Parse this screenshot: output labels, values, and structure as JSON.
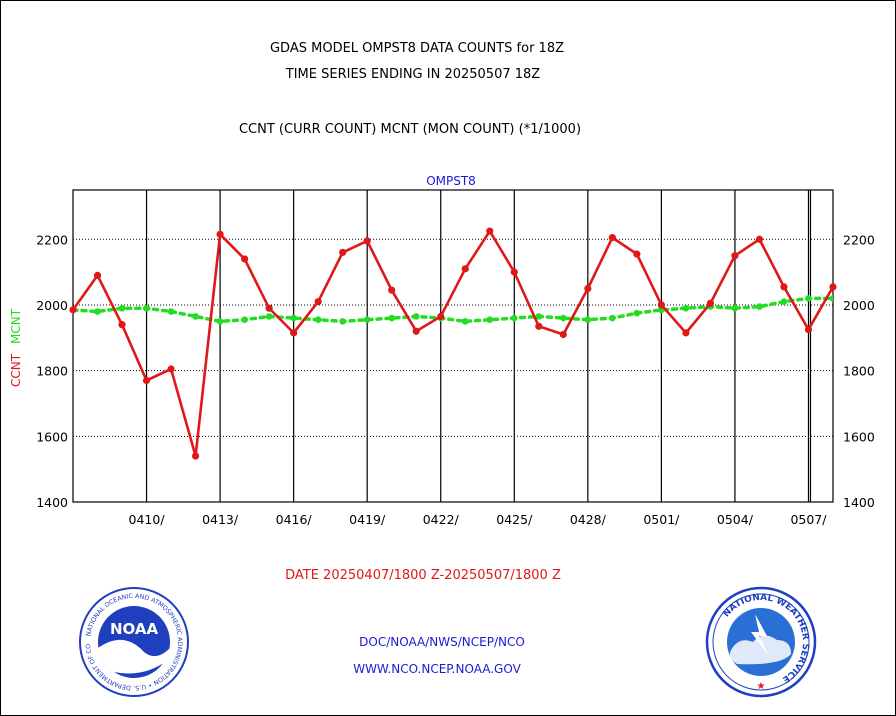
{
  "header": {
    "line1": "GDAS MODEL OMPST8 DATA COUNTS for 18Z",
    "line2": "TIME SERIES ENDING IN 20250507 18Z",
    "line3": "CCNT (CURR COUNT) MCNT (MON COUNT) (*1/1000)"
  },
  "chart_data": {
    "type": "line",
    "title": "OMPST8",
    "ylabel_curr": "CCNT",
    "ylabel_mon": "MCNT",
    "xlabel": "DATE 20250407/1800 Z-20250507/1800 Z",
    "ylim": [
      1400,
      2350
    ],
    "xlim": [
      "20250407",
      "20250508"
    ],
    "grid": true,
    "yticks": [
      1400,
      1600,
      1800,
      2000,
      2200
    ],
    "xtick_labels": [
      "0410/",
      "0413/",
      "0416/",
      "0419/",
      "0422/",
      "0425/",
      "0428/",
      "0501/",
      "0504/",
      "0507/"
    ],
    "series": [
      {
        "name": "CCNT",
        "color": "#e01818",
        "x": [
          "20250407",
          "20250408",
          "20250409",
          "20250410",
          "20250411",
          "20250412",
          "20250413",
          "20250414",
          "20250415",
          "20250416",
          "20250417",
          "20250418",
          "20250419",
          "20250420",
          "20250421",
          "20250422",
          "20250423",
          "20250424",
          "20250425",
          "20250426",
          "20250427",
          "20250428",
          "20250429",
          "20250430",
          "20250501",
          "20250502",
          "20250503",
          "20250504",
          "20250505",
          "20250506",
          "20250507",
          "20250508"
        ],
        "values": [
          1985,
          2090,
          1940,
          1770,
          1805,
          1540,
          2215,
          2140,
          1990,
          1915,
          2010,
          2160,
          2195,
          2045,
          1920,
          1965,
          2110,
          2225,
          2100,
          1935,
          1910,
          2050,
          2205,
          2155,
          2000,
          1915,
          2005,
          2150,
          2200,
          2055,
          1925,
          2055
        ]
      },
      {
        "name": "MCNT",
        "color": "#22dd22",
        "x": [
          "20250407",
          "20250408",
          "20250409",
          "20250410",
          "20250411",
          "20250412",
          "20250413",
          "20250414",
          "20250415",
          "20250416",
          "20250417",
          "20250418",
          "20250419",
          "20250420",
          "20250421",
          "20250422",
          "20250423",
          "20250424",
          "20250425",
          "20250426",
          "20250427",
          "20250428",
          "20250429",
          "20250430",
          "20250501",
          "20250502",
          "20250503",
          "20250504",
          "20250505",
          "20250506",
          "20250507",
          "20250508"
        ],
        "values": [
          1985,
          1980,
          1990,
          1990,
          1980,
          1965,
          1950,
          1955,
          1965,
          1960,
          1955,
          1950,
          1955,
          1960,
          1965,
          1960,
          1950,
          1955,
          1960,
          1965,
          1960,
          1955,
          1960,
          1975,
          1985,
          1990,
          1995,
          1990,
          1995,
          2010,
          2020,
          2020
        ]
      }
    ]
  },
  "footer": {
    "line1": "DOC/NOAA/NWS/NCEP/NCO",
    "line2": "WWW.NCO.NCEP.NOAA.GOV"
  },
  "logos": {
    "noaa_text": "NOAA",
    "noaa_ring": "NATIONAL OCEANIC AND ATMOSPHERIC ADMINISTRATION • U.S. DEPARTMENT OF COMMERCE",
    "nws_ring": "NATIONAL WEATHER SERVICE"
  },
  "colors": {
    "ccnt": "#e01818",
    "mcnt": "#22dd22",
    "label_blue": "#1a1ad6",
    "noaa_blue": "#1f3fbf",
    "nws_blue": "#2a6fd6"
  }
}
